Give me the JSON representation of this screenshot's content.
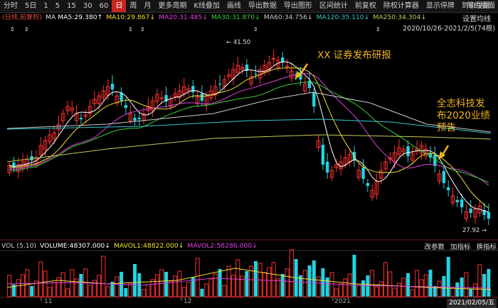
{
  "toolbar": {
    "items": [
      "分时",
      "5日",
      "1",
      "5",
      "15",
      "30",
      "60",
      "日",
      "周",
      "月",
      "更多周期",
      "K线叠加",
      "画线",
      "导出数据",
      "导出图形",
      "区间统计",
      "前复权",
      "除权计算器",
      "显示停牌",
      "到价提醒"
    ],
    "active_index": 7,
    "right_label": "简约版面"
  },
  "ma_header": {
    "tag": "(日线,前复权)",
    "ma": "MA",
    "ma5": "MA5:29.380↑",
    "ma10": "MA10:29.867↓",
    "ma20": "MA20:31.485↓",
    "ma30": "MA30:31.870↓",
    "ma60": "MA60:34.756↓",
    "ma120": "MA120:35.110↓",
    "ma250": "MA250:34.304↓",
    "colors": {
      "ma5": "#ffffff",
      "ma10": "#f2e030",
      "ma20": "#e040e0",
      "ma30": "#3ad33a",
      "ma60": "#cccccc",
      "ma120": "#38c7d0",
      "ma250": "#c8c85a"
    }
  },
  "settings_label": "设置均线",
  "date_range": "2020/10/26-2021/2/5(74根)",
  "annotations": {
    "research": "XX 证券发布研报",
    "forecast_lines": [
      "全志科技发",
      "布2020业绩",
      "预告"
    ]
  },
  "price_labels": {
    "high": "41.50",
    "low": "27.92"
  },
  "volume_header": {
    "title": "VOL (5,10)",
    "volume": "VOLUME:48307.000↓",
    "mavol1": "MAVOL1:48822.000↓",
    "mavol2": "MAVOL2:58286.000↓",
    "buttons": [
      "改参数",
      "加指标",
      "换指标"
    ]
  },
  "x_axis": {
    "labels": [
      "11",
      "12",
      "2021"
    ],
    "end_date": "2021/02/05/五"
  },
  "colors": {
    "up": "#ff3030",
    "down": "#22d3e0",
    "annotation": "#f0b41c"
  }
}
